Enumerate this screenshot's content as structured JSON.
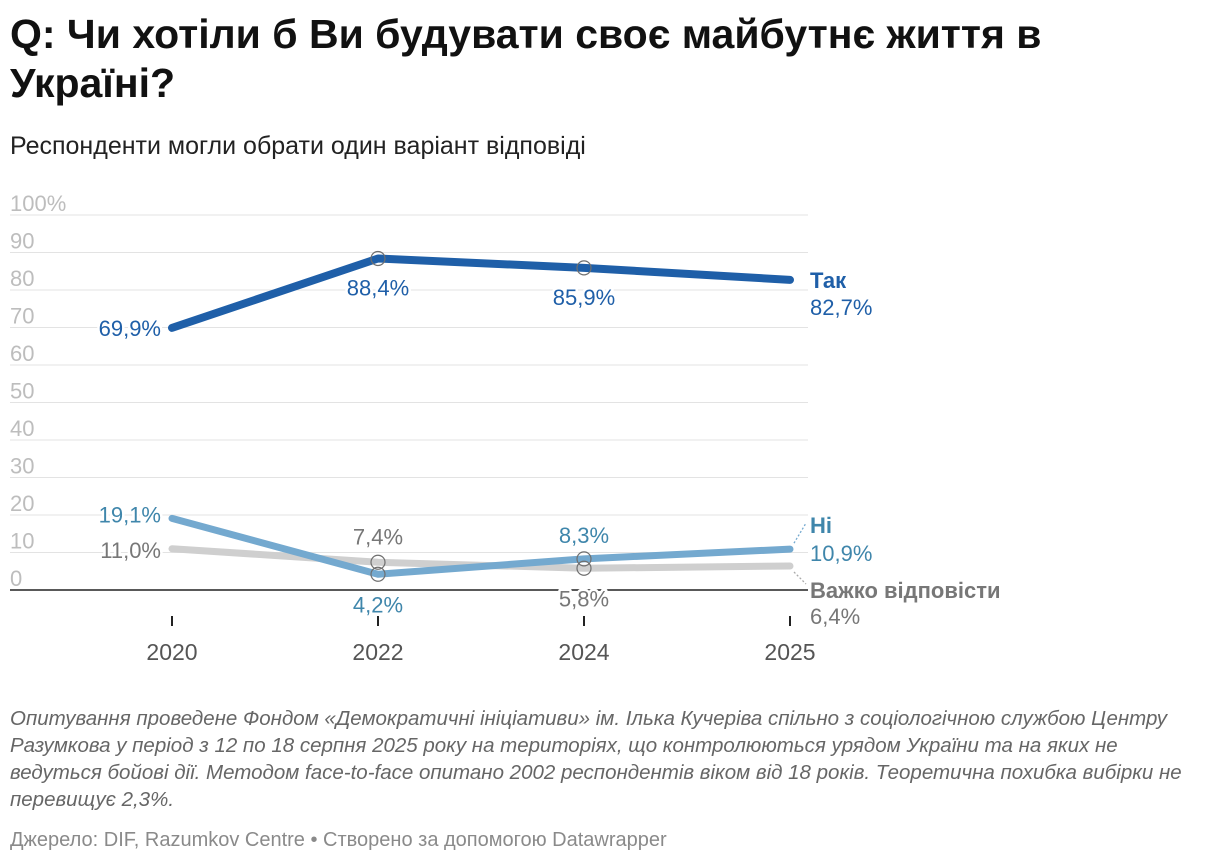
{
  "title": "Q: Чи хотіли б Ви будувати своє майбутнє життя в Україні?",
  "subtitle": "Респонденти могли обрати один варіант відповіді",
  "notes": "Опитування проведене Фондом «Демократичні ініціативи» ім. Ілька Кучеріва спільно з соціологічною службою Центру Разумкова у період з 12 по 18 серпня 2025 року на територіях, що контролюються урядом України та на яких не ведуться бойові дії. Методом face-to-face опитано 2002 респондентів віком від 18 років. Теоретична похибка вибірки не перевищує 2,3%.",
  "source_line": "Джерело: DIF, Razumkov Centre • Створено за допомогою Datawrapper",
  "chart_data": {
    "type": "line",
    "x": [
      "2020",
      "2022",
      "2024",
      "2025"
    ],
    "ylim": [
      0,
      100
    ],
    "yticks": [
      "0",
      "10",
      "20",
      "30",
      "40",
      "50",
      "60",
      "70",
      "80",
      "90",
      "100%"
    ],
    "grid": true,
    "series": [
      {
        "name": "Так",
        "color": "#1f5fa8",
        "values": [
          69.9,
          88.4,
          85.9,
          82.7
        ],
        "labels": [
          "69,9%",
          "88,4%",
          "85,9%",
          "82,7%"
        ]
      },
      {
        "name": "Ні",
        "color": "#74a9cf",
        "text_color": "#3f86ab",
        "values": [
          19.1,
          4.2,
          8.3,
          10.9
        ],
        "labels": [
          "19,1%",
          "4,2%",
          "8,3%",
          "10,9%"
        ]
      },
      {
        "name": "Важко відповісти",
        "color": "#cfcfcf",
        "text_color": "#777777",
        "values": [
          11.0,
          7.4,
          5.8,
          6.4
        ],
        "labels": [
          "11,0%",
          "7,4%",
          "5,8%",
          "6,4%"
        ]
      }
    ]
  }
}
